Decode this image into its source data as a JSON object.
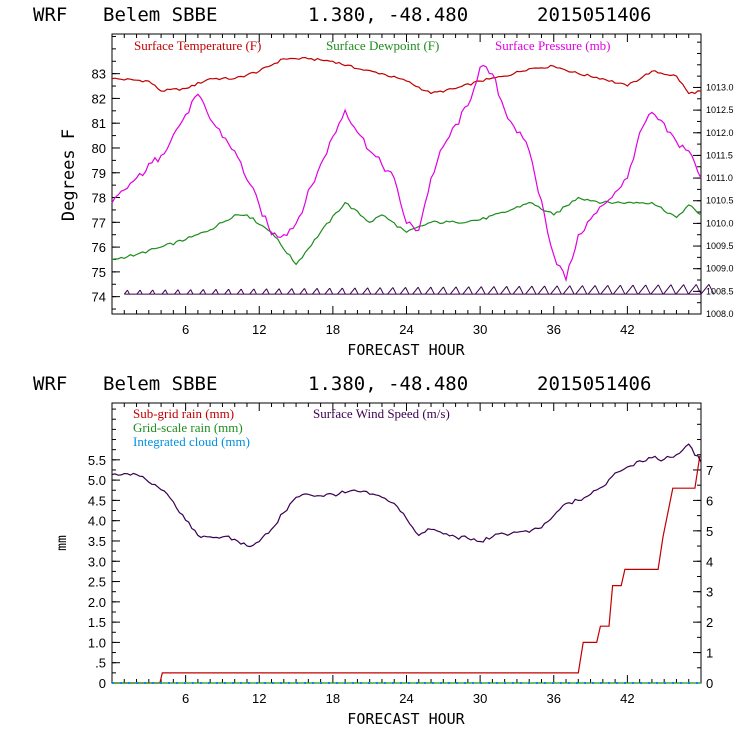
{
  "header": {
    "model": "WRF",
    "station": "Belem SBBE",
    "coords": "1.380, -48.480",
    "init": "2015051406"
  },
  "colors": {
    "temperature": "#c00000",
    "dewpoint": "#1e8c1e",
    "pressure": "#e000e0",
    "subgrid_rain": "#c00000",
    "gridscale_rain": "#1e8c1e",
    "cloud": "#0090e0",
    "wind": "#3a0050",
    "barbs": "#3a0050"
  },
  "chart_data": [
    {
      "type": "line",
      "xlabel": "FORECAST HOUR",
      "ylabel": "Degrees F",
      "xlim": [
        0,
        48
      ],
      "xticks": [
        6,
        12,
        18,
        24,
        30,
        36,
        42
      ],
      "ylim": [
        73.3,
        84.6
      ],
      "yticks": [
        74,
        75,
        76,
        77,
        78,
        79,
        80,
        81,
        82,
        83
      ],
      "y2lim": [
        1008.0,
        1014.18
      ],
      "y2ticks": [
        "1008.0",
        "1008.5",
        "1009.0",
        "1009.5",
        "1010.0",
        "1010.5",
        "1011.0",
        "1011.5",
        "1012.0",
        "1012.5",
        "1013.0"
      ],
      "legend": [
        "Surface Temperature (F)",
        "Surface Dewpoint (F)",
        "Surface Pressure (mb)"
      ],
      "series": [
        {
          "name": "Surface Temperature (F)",
          "axis": "left",
          "x": [
            0,
            3,
            4,
            6,
            8,
            10,
            12,
            14,
            16,
            18,
            20,
            22,
            24,
            26,
            28,
            30,
            32,
            34,
            36,
            38,
            40,
            42,
            44,
            46,
            47,
            48
          ],
          "y": [
            82.8,
            82.7,
            82.3,
            82.4,
            82.8,
            82.8,
            83.1,
            83.6,
            83.6,
            83.5,
            83.2,
            83.0,
            82.7,
            82.2,
            82.4,
            82.7,
            82.9,
            83.2,
            83.3,
            83.0,
            82.8,
            82.5,
            83.1,
            82.9,
            82.2,
            82.3
          ]
        },
        {
          "name": "Surface Dewpoint (F)",
          "axis": "left",
          "x": [
            0,
            2,
            4,
            6,
            8,
            10,
            11,
            13,
            15,
            17,
            19,
            21,
            22,
            24,
            26,
            28,
            30,
            32,
            34,
            36,
            38,
            40,
            42,
            44,
            46,
            47,
            48
          ],
          "y": [
            75.5,
            75.7,
            76.0,
            76.3,
            76.7,
            77.3,
            77.3,
            76.6,
            75.3,
            76.6,
            77.8,
            77.0,
            77.3,
            76.6,
            77.0,
            77.0,
            77.1,
            77.4,
            77.8,
            77.3,
            78.0,
            77.8,
            77.8,
            77.8,
            77.2,
            77.7,
            77.3
          ]
        },
        {
          "name": "Surface Pressure (mb)",
          "axis": "right",
          "x": [
            0,
            2,
            4,
            6,
            7,
            8,
            10,
            12,
            13,
            14,
            15,
            17,
            19,
            21,
            23,
            24,
            25,
            26,
            27,
            29,
            30,
            31,
            32,
            34,
            36,
            37,
            38,
            40,
            42,
            43,
            44,
            46,
            47,
            48
          ],
          "y": [
            1010.45,
            1011.0,
            1011.5,
            1012.4,
            1012.85,
            1012.3,
            1011.6,
            1010.4,
            1009.75,
            1009.75,
            1010.0,
            1011.3,
            1012.5,
            1011.6,
            1011.0,
            1010.0,
            1009.85,
            1011.0,
            1011.7,
            1012.6,
            1013.45,
            1013.3,
            1012.5,
            1011.6,
            1009.3,
            1008.75,
            1009.75,
            1010.4,
            1011.0,
            1012.0,
            1012.45,
            1011.8,
            1011.6,
            1011.0
          ]
        }
      ],
      "wind_barbs": {
        "y": 74.1,
        "x_start": 1,
        "x_end": 48,
        "count": 47
      }
    },
    {
      "type": "line",
      "xlabel": "FORECAST HOUR",
      "ylabel": "mm",
      "xlim": [
        0,
        48
      ],
      "xticks": [
        6,
        12,
        18,
        24,
        30,
        36,
        42
      ],
      "ylim": [
        0,
        6.9
      ],
      "yticks": [
        "0",
        ".5",
        "1.0",
        "1.5",
        "2.0",
        "2.5",
        "3.0",
        "3.5",
        "4.0",
        "4.5",
        "5.0",
        "5.5"
      ],
      "y2lim": [
        0,
        9.2
      ],
      "y2ticks": [
        "0",
        "1",
        "2",
        "3",
        "4",
        "5",
        "6",
        "7"
      ],
      "legend": [
        "Sub-grid rain (mm)",
        "Grid-scale rain (mm)",
        "Integrated cloud (mm)",
        "Surface Wind Speed (m/s)"
      ],
      "series": [
        {
          "name": "Sub-grid rain (mm)",
          "axis": "left",
          "x": [
            0,
            3.9,
            4.1,
            38,
            38.4,
            39.5,
            39.8,
            40.5,
            40.8,
            41.5,
            41.8,
            44.5,
            44.9,
            45.7,
            46.2,
            47.5,
            47.9
          ],
          "y": [
            0,
            0,
            0.25,
            0.25,
            1.0,
            1.0,
            1.4,
            1.4,
            2.4,
            2.4,
            2.8,
            2.8,
            3.6,
            4.8,
            4.8,
            4.8,
            5.6
          ]
        },
        {
          "name": "Grid-scale rain (mm)",
          "axis": "left",
          "x": [
            0,
            48
          ],
          "y": [
            0,
            0
          ]
        },
        {
          "name": "Integrated cloud (mm)",
          "axis": "left",
          "x": [
            0,
            48
          ],
          "y": [
            0,
            0
          ]
        },
        {
          "name": "Surface Wind Speed (m/s)",
          "axis": "right",
          "x": [
            0,
            1,
            2,
            3,
            4,
            5,
            6,
            7,
            8,
            9,
            10,
            11,
            12,
            13,
            14,
            15,
            16,
            17,
            18,
            19,
            20,
            21,
            22,
            23,
            24,
            25,
            26,
            27,
            28,
            29,
            30,
            31,
            32,
            33,
            34,
            35,
            36,
            37,
            38,
            39,
            40,
            41,
            42,
            43,
            44,
            45,
            46,
            47,
            48
          ],
          "y": [
            6.85,
            6.88,
            6.85,
            6.6,
            6.35,
            5.95,
            5.35,
            4.85,
            4.8,
            4.8,
            4.72,
            4.5,
            4.65,
            5.05,
            5.6,
            6.1,
            6.2,
            6.15,
            6.2,
            6.25,
            6.3,
            6.2,
            6.1,
            5.9,
            5.4,
            4.85,
            5.05,
            4.9,
            4.8,
            4.75,
            4.65,
            4.8,
            4.9,
            4.95,
            4.95,
            5.1,
            5.5,
            5.9,
            6.0,
            6.2,
            6.45,
            6.9,
            7.1,
            7.3,
            7.4,
            7.35,
            7.5,
            7.85,
            7.25
          ]
        }
      ]
    }
  ]
}
